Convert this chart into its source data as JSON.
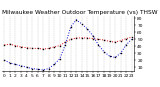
{
  "title": "Milwaukee Weather Outdoor Temperature (vs) THSW Index per Hour (Last 24 Hours)",
  "temp": [
    42,
    43,
    41,
    39,
    38,
    37,
    37,
    36,
    37,
    39,
    41,
    46,
    50,
    52,
    52,
    52,
    51,
    50,
    49,
    47,
    46,
    48,
    51,
    53
  ],
  "thsw": [
    20,
    16,
    14,
    12,
    10,
    8,
    7,
    6,
    8,
    14,
    22,
    42,
    68,
    78,
    72,
    65,
    55,
    42,
    32,
    26,
    24,
    30,
    42,
    50
  ],
  "hours": [
    0,
    1,
    2,
    3,
    4,
    5,
    6,
    7,
    8,
    9,
    10,
    11,
    12,
    13,
    14,
    15,
    16,
    17,
    18,
    19,
    20,
    21,
    22,
    23
  ],
  "temp_color": "#dd0000",
  "thsw_color": "#0000cc",
  "point_color": "#000000",
  "bg_color": "#ffffff",
  "grid_color": "#888888",
  "ylim_min": 4,
  "ylim_max": 84,
  "ytick_labels": [
    "80",
    "70",
    "60",
    "50",
    "40",
    "30",
    "20",
    "10"
  ],
  "ytick_vals": [
    80,
    70,
    60,
    50,
    40,
    30,
    20,
    10
  ],
  "title_fontsize": 4.2,
  "tick_fontsize": 3.2,
  "line_width": 0.7,
  "marker_size": 1.0
}
